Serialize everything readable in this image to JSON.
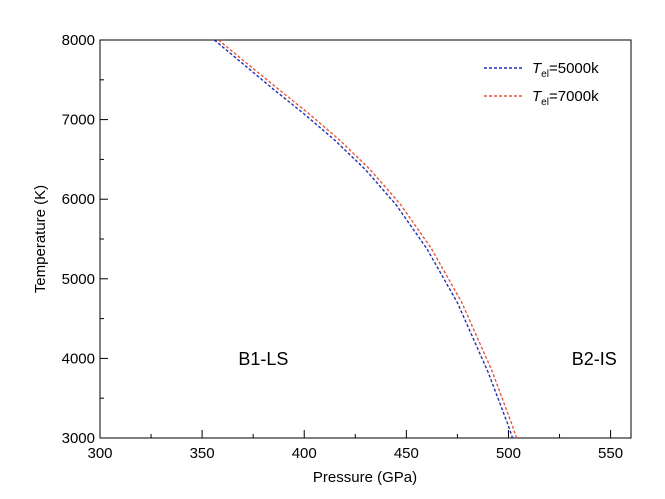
{
  "chart_data": {
    "type": "line",
    "title": "",
    "xlabel": "Pressure (GPa)",
    "ylabel": "Temperature (K)",
    "xlim": [
      300,
      560
    ],
    "ylim": [
      3000,
      8000
    ],
    "x_ticks": [
      300,
      350,
      400,
      450,
      500,
      550
    ],
    "x_tick_labels": [
      "300",
      "350",
      "400",
      "450",
      "500",
      "550"
    ],
    "y_ticks": [
      3000,
      4000,
      5000,
      6000,
      7000,
      8000
    ],
    "y_tick_labels": [
      "3000",
      "4000",
      "5000",
      "6000",
      "7000",
      "8000"
    ],
    "grid": false,
    "legend_position": "top-right",
    "series": [
      {
        "name": "T_el=5000k",
        "legend_main": "T",
        "legend_sub": "el",
        "legend_rest": "=5000k",
        "color": "#1f2fb8",
        "x": [
          356,
          370,
          385,
          400,
          415,
          430,
          445,
          460,
          475,
          490,
          500,
          502
        ],
        "y": [
          8000,
          7700,
          7380,
          7070,
          6740,
          6370,
          5930,
          5380,
          4700,
          3830,
          3150,
          3000
        ]
      },
      {
        "name": "T_el=7000k",
        "legend_main": "T",
        "legend_sub": "el",
        "legend_rest": "=7000k",
        "color": "#e8553a",
        "x": [
          358,
          372,
          387,
          402,
          417,
          432,
          447,
          462,
          477,
          492,
          502,
          504
        ],
        "y": [
          8000,
          7705,
          7390,
          7080,
          6750,
          6380,
          5940,
          5390,
          4710,
          3840,
          3150,
          3000
        ]
      }
    ],
    "annotations": [
      {
        "text": "B1-LS",
        "x": 380,
        "y": 3920
      },
      {
        "text": "B2-IS",
        "x": 542,
        "y": 3920
      }
    ]
  }
}
